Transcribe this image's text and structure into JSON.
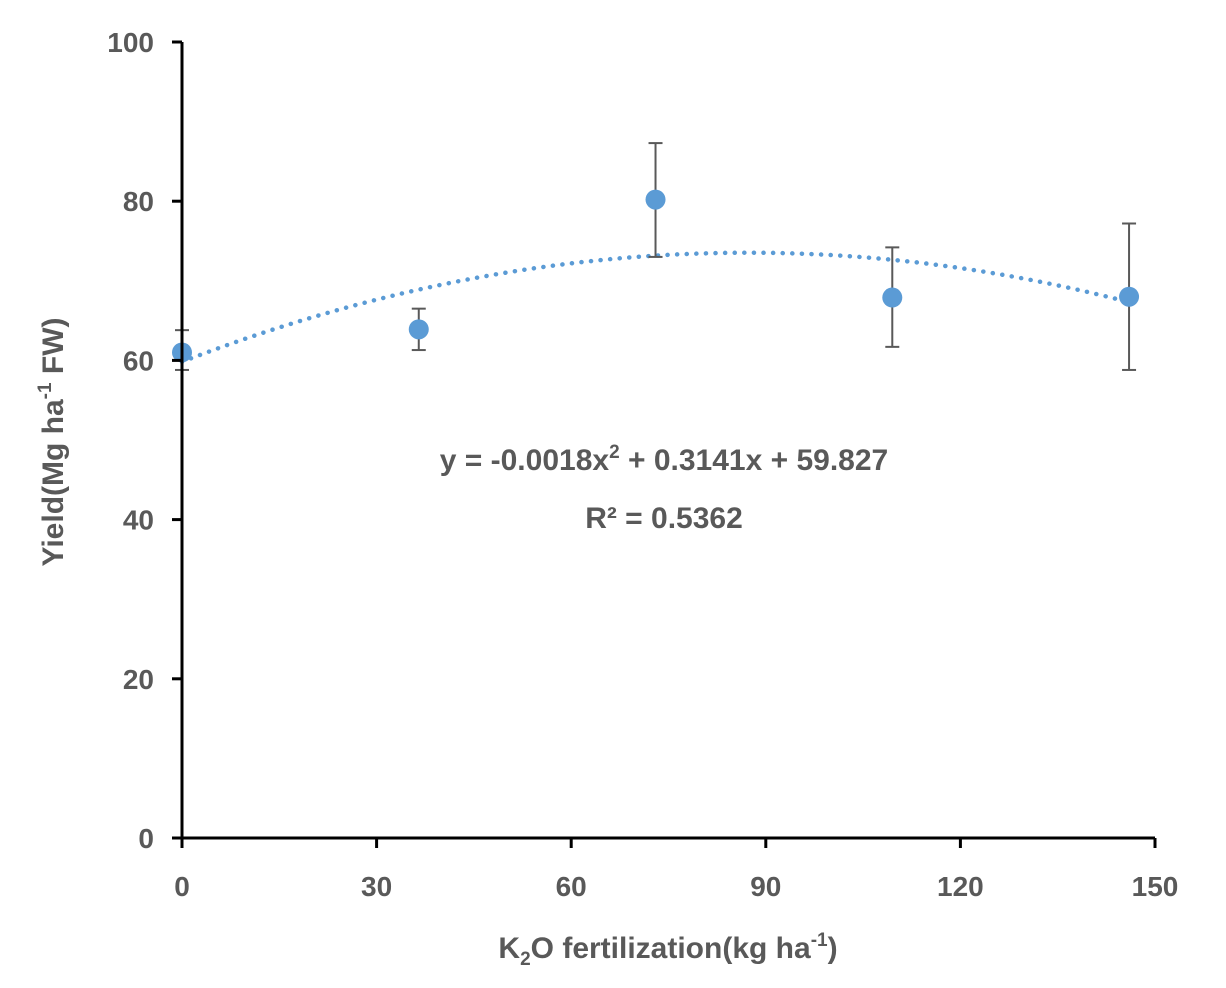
{
  "chart_data": {
    "type": "scatter",
    "x_axis": {
      "label_parts": {
        "a": "K",
        "a_sub": "2",
        "b": "O fertilization(kg ha",
        "b_sup": "-1",
        "c": ")"
      },
      "ticks": [
        "0",
        "30",
        "60",
        "90",
        "120",
        "150"
      ],
      "range": [
        0,
        150
      ]
    },
    "y_axis": {
      "label_parts": {
        "a": "Yield(Mg ha",
        "a_sup": "-1",
        "b": " FW)"
      },
      "ticks": [
        "0",
        "20",
        "40",
        "60",
        "80",
        "100"
      ],
      "range": [
        0,
        100
      ]
    },
    "points": [
      {
        "x": 0,
        "y": 61.0,
        "err_low": 58.8,
        "err_high": 63.8
      },
      {
        "x": 36.5,
        "y": 63.9,
        "err_low": 61.3,
        "err_high": 66.5
      },
      {
        "x": 73,
        "y": 80.2,
        "err_low": 73.0,
        "err_high": 87.3
      },
      {
        "x": 109.5,
        "y": 67.9,
        "err_low": 61.7,
        "err_high": 74.2
      },
      {
        "x": 146,
        "y": 68.0,
        "err_low": 58.8,
        "err_high": 77.2
      }
    ],
    "trendline": {
      "type": "polynomial",
      "a": -0.0018,
      "b": 0.3141,
      "c": 59.827,
      "x_range": [
        0,
        146
      ]
    },
    "equation_parts": {
      "a": "y = -0.0018x",
      "a_sup": "2",
      "b": " + 0.3141x + 59.827"
    },
    "r_squared_text": "R² = 0.5362",
    "grid": false,
    "colors": {
      "marker": "#5B9BD5",
      "trendline": "#5B9BD5",
      "axis": "#000000",
      "error_bar": "#595959",
      "text": "#595959"
    }
  }
}
